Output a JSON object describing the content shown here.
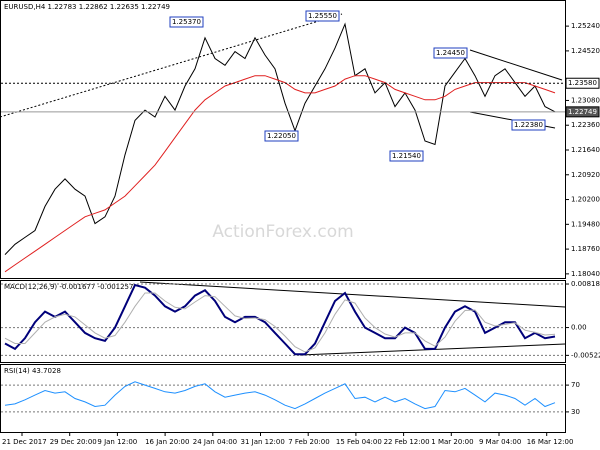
{
  "chart_data": [
    {
      "type": "line",
      "title": "EURUSD,H4 1.22783 1.22862 1.22635 1.22749",
      "watermark": "ActionForex.com",
      "series": [
        {
          "color": "#000000",
          "values": [
            1.186,
            1.189,
            1.191,
            1.193,
            1.2,
            1.205,
            1.208,
            1.205,
            1.203,
            1.195,
            1.197,
            1.203,
            1.215,
            1.225,
            1.228,
            1.226,
            1.232,
            1.228,
            1.235,
            1.24,
            1.249,
            1.243,
            1.241,
            1.245,
            1.243,
            1.249,
            1.244,
            1.24,
            1.23,
            1.222,
            1.23,
            1.235,
            1.24,
            1.246,
            1.253,
            1.238,
            1.24,
            1.233,
            1.236,
            1.229,
            1.233,
            1.228,
            1.219,
            1.218,
            1.235,
            1.239,
            1.243,
            1.238,
            1.232,
            1.238,
            1.24,
            1.236,
            1.232,
            1.235,
            1.229,
            1.22749
          ]
        },
        {
          "color": "#e02020",
          "values": [
            1.181,
            1.183,
            1.185,
            1.187,
            1.189,
            1.191,
            1.193,
            1.195,
            1.197,
            1.198,
            1.199,
            1.201,
            1.203,
            1.206,
            1.209,
            1.212,
            1.216,
            1.22,
            1.224,
            1.228,
            1.231,
            1.233,
            1.235,
            1.236,
            1.237,
            1.238,
            1.238,
            1.237,
            1.236,
            1.234,
            1.233,
            1.233,
            1.234,
            1.235,
            1.237,
            1.238,
            1.238,
            1.237,
            1.236,
            1.234,
            1.233,
            1.232,
            1.231,
            1.231,
            1.232,
            1.234,
            1.235,
            1.236,
            1.236,
            1.236,
            1.236,
            1.236,
            1.236,
            1.235,
            1.234,
            1.233
          ]
        }
      ],
      "ylim": [
        1.1792,
        1.2597
      ],
      "yticks": [
        {
          "value": 1.2524,
          "label": "1.25240"
        },
        {
          "value": 1.2452,
          "label": "1.24520"
        },
        {
          "value": 1.2308,
          "label": "1.23080"
        },
        {
          "value": 1.2236,
          "label": "1.22360"
        },
        {
          "value": 1.2164,
          "label": "1.21640"
        },
        {
          "value": 1.2092,
          "label": "1.20920"
        },
        {
          "value": 1.202,
          "label": "1.20200"
        },
        {
          "value": 1.1948,
          "label": "1.19480"
        },
        {
          "value": 1.1876,
          "label": "1.18760"
        },
        {
          "value": 1.1804,
          "label": "1.18040"
        }
      ],
      "price_levels": [
        {
          "value": 1.2358,
          "label": "1.23580"
        },
        {
          "value": 1.22749,
          "label": "1.22749"
        }
      ],
      "annotations": [
        "1.25370",
        "1.25550",
        "1.24450",
        "1.22380",
        "1.22050",
        "1.21540"
      ]
    },
    {
      "type": "line",
      "title": "MACD(12,26,9) -0.001677 -0.001257",
      "series": [
        {
          "color": "#00007a",
          "values": [
            -0.003,
            -0.004,
            -0.002,
            0.001,
            0.003,
            0.002,
            0.003,
            0.001,
            -0.001,
            -0.002,
            -0.0025,
            0,
            0.004,
            0.008,
            0.0075,
            0.006,
            0.004,
            0.003,
            0.004,
            0.006,
            0.007,
            0.005,
            0.002,
            0.001,
            0.002,
            0.002,
            0.001,
            -0.001,
            -0.003,
            -0.005,
            -0.005,
            -0.003,
            0.001,
            0.005,
            0.0065,
            0.003,
            0,
            -0.001,
            -0.002,
            -0.002,
            0,
            -0.001,
            -0.004,
            -0.004,
            0,
            0.003,
            0.004,
            0.003,
            -0.001,
            0,
            0.001,
            0.001,
            -0.002,
            -0.001,
            -0.002,
            -0.001677
          ]
        },
        {
          "color": "#b0b0b0",
          "values": [
            -0.002,
            -0.003,
            -0.003,
            -0.001,
            0.001,
            0.002,
            0.0025,
            0.002,
            0.0005,
            -0.001,
            -0.002,
            -0.0015,
            0.001,
            0.004,
            0.0065,
            0.0065,
            0.005,
            0.0038,
            0.0035,
            0.0048,
            0.006,
            0.0058,
            0.004,
            0.0022,
            0.0017,
            0.0018,
            0.0015,
            0.0002,
            -0.0016,
            -0.0036,
            -0.0046,
            -0.0038,
            -0.001,
            0.0025,
            0.0052,
            0.0046,
            0.0018,
            0,
            -0.0012,
            -0.0018,
            -0.001,
            -0.001,
            -0.0025,
            -0.0035,
            -0.0018,
            0.0012,
            0.0032,
            0.0033,
            0.001,
            0.0003,
            0.0006,
            0.0009,
            -0.0005,
            -0.0009,
            -0.0014,
            -0.001257
          ]
        }
      ],
      "ylim": [
        -0.00647,
        0.00875
      ],
      "yticks": [
        0.008182,
        {
          "value": 0,
          "label": "0.00"
        },
        -0.005223
      ]
    },
    {
      "type": "line",
      "title": "RSI(14) 43.7028",
      "series": [
        {
          "color": "#1e90ff",
          "values": [
            40,
            42,
            48,
            55,
            62,
            58,
            60,
            50,
            45,
            38,
            40,
            55,
            68,
            75,
            70,
            65,
            60,
            58,
            62,
            68,
            72,
            60,
            52,
            55,
            58,
            60,
            55,
            48,
            40,
            35,
            42,
            50,
            58,
            65,
            72,
            50,
            52,
            45,
            52,
            45,
            50,
            42,
            35,
            38,
            62,
            60,
            65,
            55,
            45,
            58,
            55,
            50,
            40,
            50,
            38,
            43.7028
          ]
        }
      ],
      "ylim": [
        0,
        100
      ],
      "yticks": [
        70,
        30
      ],
      "x_labels": [
        "21 Dec 2017",
        "29 Dec 20:00",
        "9 Jan 12:00",
        "16 Jan 20:00",
        "24 Jan 04:00",
        "31 Jan 12:00",
        "7 Feb 20:00",
        "15 Feb 04:00",
        "22 Feb 12:00",
        "1 Mar 20:00",
        "9 Mar 04:00",
        "16 Mar 12:00"
      ]
    }
  ]
}
